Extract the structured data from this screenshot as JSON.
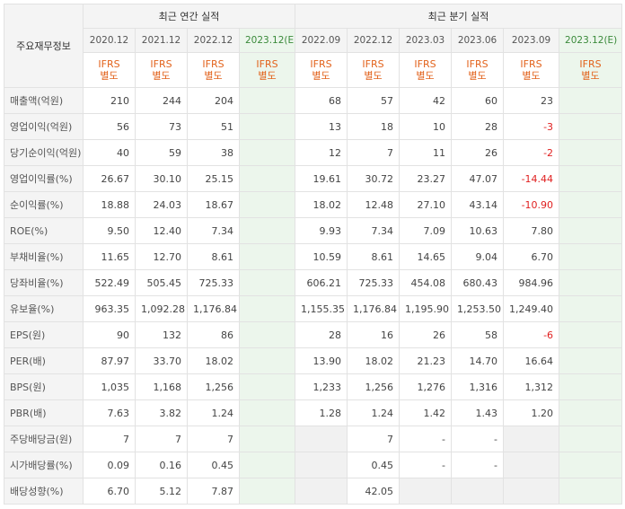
{
  "corner_label": "주요재무정보",
  "groups": {
    "annual": "최근 연간 실적",
    "quarterly": "최근 분기 실적"
  },
  "periods": [
    "2020.12",
    "2021.12",
    "2022.12",
    "2023.12(E)",
    "2022.09",
    "2022.12",
    "2023.03",
    "2023.06",
    "2023.09",
    "2023.12(E)"
  ],
  "standard": {
    "line1": "IFRS",
    "line2": "별도"
  },
  "rows": [
    {
      "label": "매출액(억원)",
      "values": [
        "210",
        "244",
        "204",
        "",
        "68",
        "57",
        "42",
        "60",
        "23",
        ""
      ]
    },
    {
      "label": "영업이익(억원)",
      "values": [
        "56",
        "73",
        "51",
        "",
        "13",
        "18",
        "10",
        "28",
        "-3",
        ""
      ]
    },
    {
      "label": "당기순이익(억원)",
      "values": [
        "40",
        "59",
        "38",
        "",
        "12",
        "7",
        "11",
        "26",
        "-2",
        ""
      ]
    },
    {
      "label": "영업이익률(%)",
      "values": [
        "26.67",
        "30.10",
        "25.15",
        "",
        "19.61",
        "30.72",
        "23.27",
        "47.07",
        "-14.44",
        ""
      ]
    },
    {
      "label": "순이익률(%)",
      "values": [
        "18.88",
        "24.03",
        "18.67",
        "",
        "18.02",
        "12.48",
        "27.10",
        "43.14",
        "-10.90",
        ""
      ]
    },
    {
      "label": "ROE(%)",
      "values": [
        "9.50",
        "12.40",
        "7.34",
        "",
        "9.93",
        "7.34",
        "7.09",
        "10.63",
        "7.80",
        ""
      ]
    },
    {
      "label": "부채비율(%)",
      "values": [
        "11.65",
        "12.70",
        "8.61",
        "",
        "10.59",
        "8.61",
        "14.65",
        "9.04",
        "6.70",
        ""
      ]
    },
    {
      "label": "당좌비율(%)",
      "values": [
        "522.49",
        "505.45",
        "725.33",
        "",
        "606.21",
        "725.33",
        "454.08",
        "680.43",
        "984.96",
        ""
      ]
    },
    {
      "label": "유보율(%)",
      "values": [
        "963.35",
        "1,092.28",
        "1,176.84",
        "",
        "1,155.35",
        "1,176.84",
        "1,195.90",
        "1,253.50",
        "1,249.40",
        ""
      ]
    },
    {
      "label": "EPS(원)",
      "values": [
        "90",
        "132",
        "86",
        "",
        "28",
        "16",
        "26",
        "58",
        "-6",
        ""
      ]
    },
    {
      "label": "PER(배)",
      "values": [
        "87.97",
        "33.70",
        "18.02",
        "",
        "13.90",
        "18.02",
        "21.23",
        "14.70",
        "16.64",
        ""
      ]
    },
    {
      "label": "BPS(원)",
      "values": [
        "1,035",
        "1,168",
        "1,256",
        "",
        "1,233",
        "1,256",
        "1,276",
        "1,316",
        "1,312",
        ""
      ]
    },
    {
      "label": "PBR(배)",
      "values": [
        "7.63",
        "3.82",
        "1.24",
        "",
        "1.28",
        "1.24",
        "1.42",
        "1.43",
        "1.20",
        ""
      ]
    },
    {
      "label": "주당배당금(원)",
      "values": [
        "7",
        "7",
        "7",
        "",
        "",
        "7",
        "-",
        "-",
        "",
        ""
      ]
    },
    {
      "label": "시가배당률(%)",
      "values": [
        "0.09",
        "0.16",
        "0.45",
        "",
        "",
        "0.45",
        "-",
        "-",
        "",
        ""
      ]
    },
    {
      "label": "배당성향(%)",
      "values": [
        "6.70",
        "5.12",
        "7.87",
        "",
        "",
        "42.05",
        "",
        "",
        "",
        ""
      ]
    }
  ],
  "colors": {
    "estimate_bg": "#ecf6ec",
    "estimate_text": "#3a8a3a",
    "ifrs_text": "#e2621b",
    "negative_text": "#e02020"
  }
}
